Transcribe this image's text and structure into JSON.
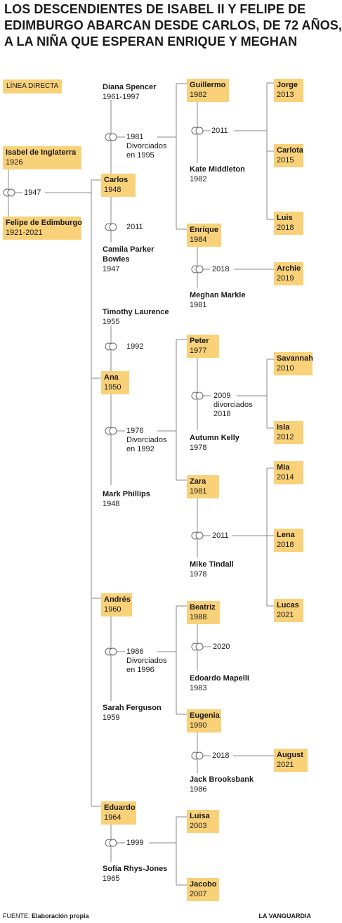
{
  "title": [
    "LOS DESCENDIENTES DE ISABEL II Y FELIPE DE",
    "EDIMBURGO ABARCAN DESDE CARLOS, DE 72 AÑOS,",
    "A LA NIÑA QUE ESPERAN ENRIQUE Y MEGHAN"
  ],
  "legend": "LÍNEA DIRECTA",
  "colors": {
    "direct_line": "#f9d179",
    "connector": "#8a8a8a",
    "text": "#1a1a1a"
  },
  "icons": {
    "marriage": "marriage-rings-icon"
  },
  "people": {
    "isabel": {
      "name": "Isabel de Inglaterra",
      "year": "1926"
    },
    "felipe": {
      "name": "Felipe de Edimburgo",
      "year": "1921-2021"
    },
    "carlos": {
      "name": "Carlos",
      "year": "1948"
    },
    "diana": {
      "name": "Diana Spencer",
      "year": "1961-1997"
    },
    "camila": {
      "name_1": "Camila Parker",
      "name_2": "Bowles",
      "year": "1947"
    },
    "guillermo": {
      "name": "Guillermo",
      "year": "1982"
    },
    "kate": {
      "name": "Kate Middleton",
      "year": "1982"
    },
    "jorge": {
      "name": "Jorge",
      "year": "2013"
    },
    "carlota": {
      "name": "Carlota",
      "year": "2015"
    },
    "luis": {
      "name": "Luis",
      "year": "2018"
    },
    "enrique": {
      "name": "Enrique",
      "year": "1984"
    },
    "meghan": {
      "name": "Meghan Markle",
      "year": "1981"
    },
    "archie": {
      "name": "Archie",
      "year": "2019"
    },
    "ana": {
      "name": "Ana",
      "year": "1950"
    },
    "timothy": {
      "name": "Timothy Laurence",
      "year": "1955"
    },
    "mark": {
      "name": "Mark Phillips",
      "year": "1948"
    },
    "peter": {
      "name": "Peter",
      "year": "1977"
    },
    "autumn": {
      "name": "Autumn Kelly",
      "year": "1978"
    },
    "savannah": {
      "name": "Savannah",
      "year": "2010"
    },
    "isla": {
      "name": "Isla",
      "year": "2012"
    },
    "zara": {
      "name": "Zara",
      "year": "1981"
    },
    "mike": {
      "name": "Mike Tindall",
      "year": "1978"
    },
    "mia": {
      "name": "Mia",
      "year": "2014"
    },
    "lena": {
      "name": "Lena",
      "year": "2018"
    },
    "lucas": {
      "name": "Lucas",
      "year": "2021"
    },
    "andres": {
      "name": "Andrés",
      "year": "1960"
    },
    "sarah": {
      "name": "Sarah Ferguson",
      "year": "1959"
    },
    "beatriz": {
      "name": "Beatriz",
      "year": "1988"
    },
    "edoardo": {
      "name": "Edoardo Mapelli",
      "year": "1983"
    },
    "eugenia": {
      "name": "Eugenia",
      "year": "1990"
    },
    "jack": {
      "name": "Jack Brooksbank",
      "year": "1986"
    },
    "august": {
      "name": "August",
      "year": "2021"
    },
    "eduardo": {
      "name": "Eduardo",
      "year": "1964"
    },
    "sofia": {
      "name": "Sofía Rhys-Jones",
      "year": "1965"
    },
    "luisa": {
      "name": "Luisa",
      "year": "2003"
    },
    "jacobo": {
      "name": "Jacobo",
      "year": "2007"
    }
  },
  "marriages": {
    "isabel_felipe": {
      "year": "1947"
    },
    "carlos_diana": {
      "year": "1981",
      "note_1": "Divorciados",
      "note_2": "en 1995"
    },
    "carlos_camila": {
      "year": "2011"
    },
    "guillermo_kate": {
      "year": "2011"
    },
    "enrique_meghan": {
      "year": "2018"
    },
    "ana_timothy": {
      "year": "1992"
    },
    "ana_mark": {
      "year": "1976",
      "note_1": "Divorciados",
      "note_2": "en 1992"
    },
    "peter_autumn": {
      "year": "2009",
      "note_1": "divorciados",
      "note_2": "2018"
    },
    "zara_mike": {
      "year": "2011"
    },
    "andres_sarah": {
      "year": "1986",
      "note_1": "Divorciados",
      "note_2": "en 1996"
    },
    "beatriz_edoardo": {
      "year": "2020"
    },
    "eugenia_jack": {
      "year": "2018"
    },
    "eduardo_sofia": {
      "year": "1999"
    }
  },
  "footer": {
    "source_label": "FUENTE:",
    "source_value": "Elaboración propia",
    "publisher": "LA VANGUARDIA"
  }
}
